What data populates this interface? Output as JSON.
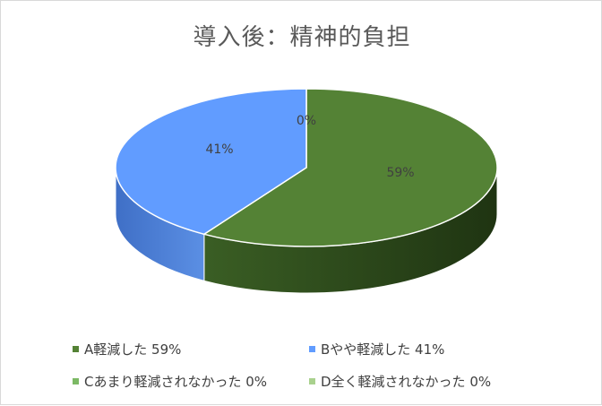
{
  "chart_data": {
    "type": "pie",
    "title": "導入後：精神的負担",
    "series": [
      {
        "name": "A軽減した",
        "value": 59,
        "label": "59%",
        "color": "#548235",
        "legend": "A軽減した 59%"
      },
      {
        "name": "Bやや軽減した",
        "value": 41,
        "label": "41%",
        "color": "#619CFF",
        "legend": "Bやや軽減した 41%"
      },
      {
        "name": "Cあまり軽減されなかった",
        "value": 0,
        "label": "0%",
        "color": "#7CB965",
        "legend": "Cあまり軽減されなかった 0%"
      },
      {
        "name": "D全く軽減されなかった",
        "value": 0,
        "label": "0%",
        "color": "#A9D18E",
        "legend": "D全く軽減されなかった 0%"
      }
    ],
    "style": "3d",
    "legend_position": "bottom"
  }
}
